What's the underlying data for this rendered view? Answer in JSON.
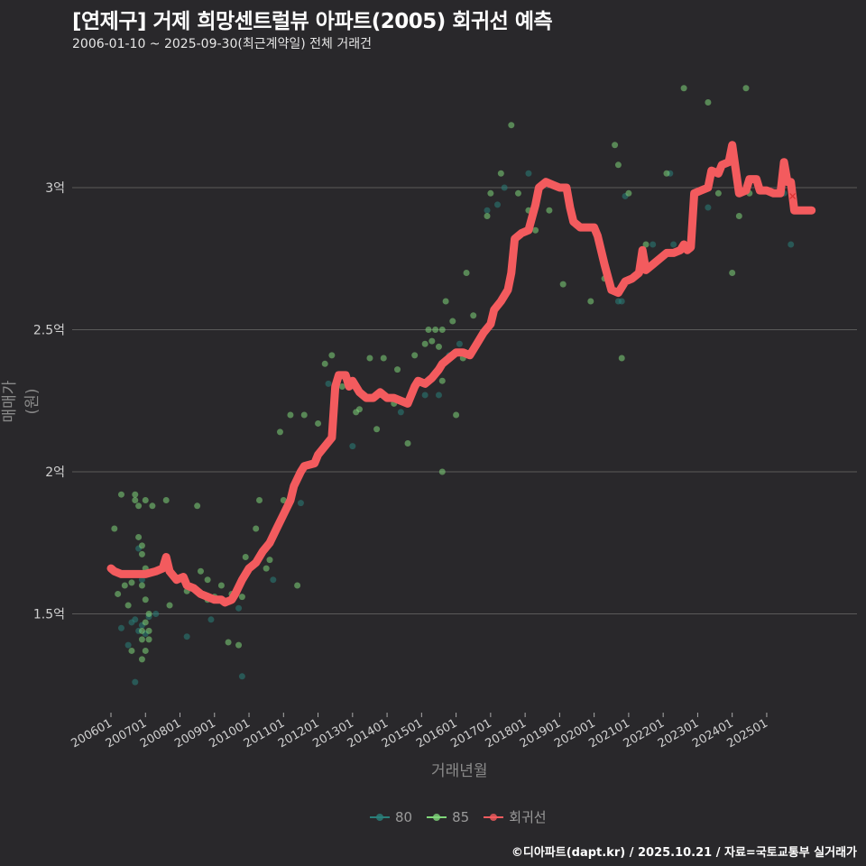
{
  "header": {
    "title": "[연제구] 거제 희망센트럴뷰 아파트(2005) 회귀선 예측",
    "subtitle": "2006-01-10 ~ 2025-09-30(최근계약일) 전체 거래건"
  },
  "footer": {
    "credit": "©디아파트(dapt.kr) / 2025.10.21 / 자료=국토교통부 실거래가"
  },
  "colors": {
    "background": "#29282b",
    "grid": "#5a5a5a",
    "s80": "#2a7f7a",
    "s85": "#7fd67a",
    "regression": "#f35b5e"
  },
  "chart_data": {
    "type": "scatter",
    "title": "[연제구] 거제 희망센트럴뷰 아파트(2005) 회귀선 예측",
    "subtitle": "2006-01-10 ~ 2025-09-30(최근계약일) 전체 거래건",
    "xlabel": "거래년월",
    "ylabel": "매매가(원)",
    "x_ticks": [
      "200601",
      "200701",
      "200801",
      "200901",
      "201001",
      "201101",
      "201201",
      "201301",
      "201401",
      "201501",
      "201601",
      "201701",
      "201801",
      "201901",
      "202001",
      "202101",
      "202201",
      "202301",
      "202401",
      "202501"
    ],
    "y_ticks": [
      {
        "value": 1.5,
        "label": "1.5억"
      },
      {
        "value": 2.0,
        "label": "2억"
      },
      {
        "value": 2.5,
        "label": "2.5억"
      },
      {
        "value": 3.0,
        "label": "3억"
      }
    ],
    "ylim": [
      1.17,
      3.45
    ],
    "xlim": [
      2005.6,
      2026.1
    ],
    "grid": "horizontal",
    "legend": {
      "position": "bottom",
      "entries": [
        "80",
        "85",
        "회귀선"
      ]
    },
    "series": [
      {
        "name": "80",
        "type": "scatter",
        "points": [
          [
            2006.3,
            1.45
          ],
          [
            2006.5,
            1.39
          ],
          [
            2006.6,
            1.47
          ],
          [
            2006.7,
            1.48
          ],
          [
            2006.8,
            1.44
          ],
          [
            2006.9,
            1.46
          ],
          [
            2006.7,
            1.26
          ],
          [
            2006.8,
            1.73
          ],
          [
            2006.9,
            1.62
          ],
          [
            2007.0,
            1.43
          ],
          [
            2007.1,
            1.49
          ],
          [
            2007.3,
            1.5
          ],
          [
            2008.2,
            1.42
          ],
          [
            2008.9,
            1.48
          ],
          [
            2009.7,
            1.52
          ],
          [
            2009.8,
            1.28
          ],
          [
            2010.7,
            1.62
          ],
          [
            2011.5,
            1.89
          ],
          [
            2012.3,
            2.31
          ],
          [
            2013.0,
            2.09
          ],
          [
            2014.4,
            2.21
          ],
          [
            2015.1,
            2.27
          ],
          [
            2015.4,
            2.35
          ],
          [
            2015.5,
            2.27
          ],
          [
            2015.8,
            2.41
          ],
          [
            2016.1,
            2.45
          ],
          [
            2016.9,
            2.92
          ],
          [
            2017.2,
            2.94
          ],
          [
            2017.4,
            3.0
          ],
          [
            2018.1,
            3.05
          ],
          [
            2020.7,
            2.6
          ],
          [
            2020.8,
            2.6
          ],
          [
            2020.9,
            2.97
          ],
          [
            2021.7,
            2.8
          ],
          [
            2022.2,
            3.05
          ],
          [
            2022.3,
            2.8
          ],
          [
            2023.3,
            2.93
          ],
          [
            2025.5,
            2.98
          ],
          [
            2025.7,
            2.8
          ]
        ]
      },
      {
        "name": "85",
        "type": "scatter",
        "points": [
          [
            2006.1,
            1.8
          ],
          [
            2006.2,
            1.57
          ],
          [
            2006.3,
            1.92
          ],
          [
            2006.4,
            1.6
          ],
          [
            2006.5,
            1.53
          ],
          [
            2006.6,
            1.61
          ],
          [
            2006.6,
            1.37
          ],
          [
            2006.7,
            1.92
          ],
          [
            2006.7,
            1.9
          ],
          [
            2006.8,
            1.88
          ],
          [
            2006.8,
            1.77
          ],
          [
            2006.9,
            1.74
          ],
          [
            2006.9,
            1.71
          ],
          [
            2006.9,
            1.6
          ],
          [
            2006.9,
            1.44
          ],
          [
            2006.9,
            1.41
          ],
          [
            2006.9,
            1.34
          ],
          [
            2007.0,
            1.9
          ],
          [
            2007.0,
            1.66
          ],
          [
            2007.0,
            1.55
          ],
          [
            2007.0,
            1.47
          ],
          [
            2007.0,
            1.37
          ],
          [
            2007.1,
            1.5
          ],
          [
            2007.1,
            1.44
          ],
          [
            2007.1,
            1.41
          ],
          [
            2007.2,
            1.88
          ],
          [
            2007.6,
            1.9
          ],
          [
            2007.7,
            1.53
          ],
          [
            2008.2,
            1.58
          ],
          [
            2008.5,
            1.88
          ],
          [
            2008.6,
            1.65
          ],
          [
            2008.8,
            1.62
          ],
          [
            2008.8,
            1.55
          ],
          [
            2009.0,
            1.56
          ],
          [
            2009.2,
            1.6
          ],
          [
            2009.4,
            1.4
          ],
          [
            2009.5,
            1.57
          ],
          [
            2009.7,
            1.39
          ],
          [
            2009.8,
            1.56
          ],
          [
            2009.9,
            1.7
          ],
          [
            2010.2,
            1.8
          ],
          [
            2010.3,
            1.9
          ],
          [
            2010.5,
            1.66
          ],
          [
            2010.6,
            1.69
          ],
          [
            2010.9,
            2.14
          ],
          [
            2011.0,
            1.9
          ],
          [
            2011.2,
            2.2
          ],
          [
            2011.4,
            1.6
          ],
          [
            2011.6,
            2.2
          ],
          [
            2012.0,
            2.17
          ],
          [
            2012.2,
            2.38
          ],
          [
            2012.4,
            2.41
          ],
          [
            2012.7,
            2.3
          ],
          [
            2013.1,
            2.21
          ],
          [
            2013.2,
            2.22
          ],
          [
            2013.5,
            2.4
          ],
          [
            2013.7,
            2.15
          ],
          [
            2013.9,
            2.4
          ],
          [
            2014.2,
            2.24
          ],
          [
            2014.3,
            2.36
          ],
          [
            2014.6,
            2.1
          ],
          [
            2014.8,
            2.41
          ],
          [
            2015.1,
            2.45
          ],
          [
            2015.2,
            2.5
          ],
          [
            2015.3,
            2.46
          ],
          [
            2015.4,
            2.5
          ],
          [
            2015.5,
            2.44
          ],
          [
            2015.6,
            2.5
          ],
          [
            2015.6,
            2.32
          ],
          [
            2015.6,
            2.0
          ],
          [
            2015.7,
            2.6
          ],
          [
            2015.9,
            2.53
          ],
          [
            2016.0,
            2.2
          ],
          [
            2016.2,
            2.4
          ],
          [
            2016.3,
            2.7
          ],
          [
            2016.5,
            2.55
          ],
          [
            2016.9,
            2.9
          ],
          [
            2017.0,
            2.98
          ],
          [
            2017.3,
            3.05
          ],
          [
            2017.6,
            3.22
          ],
          [
            2017.8,
            2.98
          ],
          [
            2018.1,
            2.92
          ],
          [
            2018.3,
            2.85
          ],
          [
            2018.7,
            2.92
          ],
          [
            2019.1,
            2.66
          ],
          [
            2019.9,
            2.6
          ],
          [
            2020.3,
            2.68
          ],
          [
            2020.6,
            3.15
          ],
          [
            2020.7,
            3.08
          ],
          [
            2020.8,
            2.4
          ],
          [
            2021.0,
            2.98
          ],
          [
            2021.5,
            2.8
          ],
          [
            2022.1,
            3.05
          ],
          [
            2022.6,
            3.35
          ],
          [
            2023.3,
            3.3
          ],
          [
            2023.6,
            2.98
          ],
          [
            2024.0,
            2.7
          ],
          [
            2024.2,
            2.9
          ],
          [
            2024.4,
            3.35
          ],
          [
            2024.5,
            2.98
          ]
        ]
      },
      {
        "name": "회귀선",
        "type": "line",
        "points": [
          [
            2006.0,
            1.66
          ],
          [
            2006.1,
            1.65
          ],
          [
            2006.3,
            1.64
          ],
          [
            2006.5,
            1.64
          ],
          [
            2007.0,
            1.64
          ],
          [
            2007.3,
            1.65
          ],
          [
            2007.5,
            1.66
          ],
          [
            2007.6,
            1.7
          ],
          [
            2007.7,
            1.65
          ],
          [
            2007.9,
            1.62
          ],
          [
            2008.1,
            1.63
          ],
          [
            2008.2,
            1.6
          ],
          [
            2008.4,
            1.59
          ],
          [
            2008.6,
            1.57
          ],
          [
            2008.8,
            1.56
          ],
          [
            2009.0,
            1.55
          ],
          [
            2009.2,
            1.55
          ],
          [
            2009.3,
            1.54
          ],
          [
            2009.5,
            1.55
          ],
          [
            2009.6,
            1.57
          ],
          [
            2009.8,
            1.62
          ],
          [
            2010.0,
            1.66
          ],
          [
            2010.2,
            1.68
          ],
          [
            2010.4,
            1.72
          ],
          [
            2010.6,
            1.75
          ],
          [
            2010.8,
            1.8
          ],
          [
            2011.0,
            1.85
          ],
          [
            2011.2,
            1.9
          ],
          [
            2011.3,
            1.95
          ],
          [
            2011.5,
            2.0
          ],
          [
            2011.6,
            2.02
          ],
          [
            2011.9,
            2.03
          ],
          [
            2012.0,
            2.06
          ],
          [
            2012.2,
            2.09
          ],
          [
            2012.4,
            2.12
          ],
          [
            2012.5,
            2.3
          ],
          [
            2012.6,
            2.34
          ],
          [
            2012.8,
            2.34
          ],
          [
            2012.9,
            2.3
          ],
          [
            2013.0,
            2.32
          ],
          [
            2013.2,
            2.28
          ],
          [
            2013.4,
            2.26
          ],
          [
            2013.6,
            2.26
          ],
          [
            2013.8,
            2.28
          ],
          [
            2014.0,
            2.26
          ],
          [
            2014.2,
            2.26
          ],
          [
            2014.4,
            2.25
          ],
          [
            2014.6,
            2.24
          ],
          [
            2014.8,
            2.3
          ],
          [
            2014.9,
            2.32
          ],
          [
            2015.1,
            2.31
          ],
          [
            2015.3,
            2.33
          ],
          [
            2015.5,
            2.36
          ],
          [
            2015.6,
            2.38
          ],
          [
            2015.8,
            2.4
          ],
          [
            2016.0,
            2.42
          ],
          [
            2016.2,
            2.42
          ],
          [
            2016.4,
            2.41
          ],
          [
            2016.6,
            2.45
          ],
          [
            2016.8,
            2.49
          ],
          [
            2017.0,
            2.52
          ],
          [
            2017.1,
            2.57
          ],
          [
            2017.3,
            2.6
          ],
          [
            2017.5,
            2.64
          ],
          [
            2017.6,
            2.7
          ],
          [
            2017.7,
            2.82
          ],
          [
            2017.9,
            2.84
          ],
          [
            2018.1,
            2.85
          ],
          [
            2018.3,
            2.94
          ],
          [
            2018.4,
            3.0
          ],
          [
            2018.6,
            3.02
          ],
          [
            2018.8,
            3.01
          ],
          [
            2019.0,
            3.0
          ],
          [
            2019.2,
            3.0
          ],
          [
            2019.3,
            2.93
          ],
          [
            2019.4,
            2.88
          ],
          [
            2019.6,
            2.86
          ],
          [
            2019.8,
            2.86
          ],
          [
            2020.0,
            2.86
          ],
          [
            2020.1,
            2.83
          ],
          [
            2020.2,
            2.78
          ],
          [
            2020.3,
            2.73
          ],
          [
            2020.5,
            2.64
          ],
          [
            2020.7,
            2.63
          ],
          [
            2020.9,
            2.67
          ],
          [
            2021.1,
            2.68
          ],
          [
            2021.3,
            2.7
          ],
          [
            2021.4,
            2.78
          ],
          [
            2021.5,
            2.71
          ],
          [
            2021.7,
            2.73
          ],
          [
            2021.9,
            2.75
          ],
          [
            2022.1,
            2.77
          ],
          [
            2022.3,
            2.77
          ],
          [
            2022.5,
            2.78
          ],
          [
            2022.6,
            2.8
          ],
          [
            2022.7,
            2.78
          ],
          [
            2022.8,
            2.79
          ],
          [
            2022.9,
            2.98
          ],
          [
            2023.1,
            2.99
          ],
          [
            2023.3,
            3.0
          ],
          [
            2023.4,
            3.06
          ],
          [
            2023.6,
            3.05
          ],
          [
            2023.7,
            3.08
          ],
          [
            2023.9,
            3.09
          ],
          [
            2024.0,
            3.15
          ],
          [
            2024.2,
            2.98
          ],
          [
            2024.4,
            2.99
          ],
          [
            2024.5,
            3.03
          ],
          [
            2024.7,
            3.03
          ],
          [
            2024.8,
            2.99
          ],
          [
            2025.0,
            2.99
          ],
          [
            2025.2,
            2.98
          ],
          [
            2025.4,
            2.98
          ],
          [
            2025.5,
            3.09
          ],
          [
            2025.6,
            3.02
          ],
          [
            2025.7,
            3.02
          ],
          [
            2025.8,
            2.92
          ],
          [
            2026.0,
            2.92
          ],
          [
            2026.3,
            2.92
          ]
        ]
      }
    ],
    "annotations": [
      {
        "type": "marker",
        "shape": "x",
        "x": 2025.75,
        "y": 2.97,
        "color": "#d93232"
      }
    ]
  }
}
